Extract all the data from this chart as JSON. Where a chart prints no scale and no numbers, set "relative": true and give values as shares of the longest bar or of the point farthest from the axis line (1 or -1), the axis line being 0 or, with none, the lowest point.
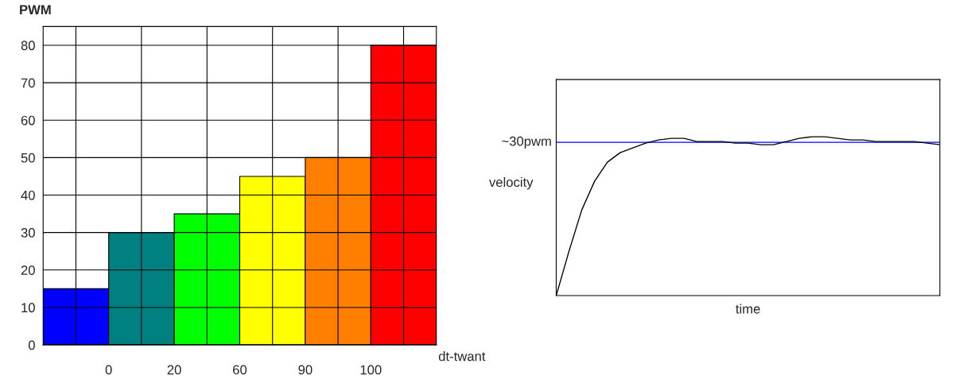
{
  "chart_data": [
    {
      "type": "bar",
      "ylabel": "PWM",
      "xlabel": "dt-twant",
      "categories": [
        null,
        null,
        null,
        null,
        null,
        null
      ],
      "values": [
        15,
        30,
        35,
        45,
        50,
        80
      ],
      "colors": [
        "#0000ff",
        "#008080",
        "#00ff00",
        "#ffff00",
        "#ff8000",
        "#ff0000"
      ],
      "ylim": [
        0,
        85
      ],
      "yticks": [
        0,
        10,
        20,
        30,
        40,
        50,
        60,
        70,
        80
      ],
      "grid": true,
      "annotations": [
        "0",
        "20",
        "60",
        "90",
        "100"
      ]
    },
    {
      "type": "line",
      "relative": true,
      "xlabel": "time",
      "ylabel": "velocity",
      "legend": false,
      "categories": [
        null,
        null,
        null,
        null,
        null,
        null,
        null,
        null,
        null,
        null,
        null,
        null,
        null,
        null,
        null,
        null,
        null,
        null,
        null,
        null,
        null,
        null,
        null,
        null,
        null,
        null,
        null,
        null,
        null,
        null,
        null
      ],
      "series": [
        {
          "color": "#000000",
          "values": [
            0,
            0.28,
            0.54,
            0.72,
            0.84,
            0.9,
            0.93,
            0.96,
            0.98,
            0.99,
            0.99,
            0.97,
            0.97,
            0.97,
            0.96,
            0.96,
            0.95,
            0.95,
            0.97,
            0.99,
            1.0,
            1.0,
            0.99,
            0.98,
            0.98,
            0.97,
            0.97,
            0.97,
            0.97,
            0.96,
            0.95
          ]
        }
      ],
      "ref_lines": [
        {
          "axis": "y",
          "value": 0.965,
          "label": "~30pwm",
          "color": "#0000ff"
        }
      ]
    }
  ]
}
